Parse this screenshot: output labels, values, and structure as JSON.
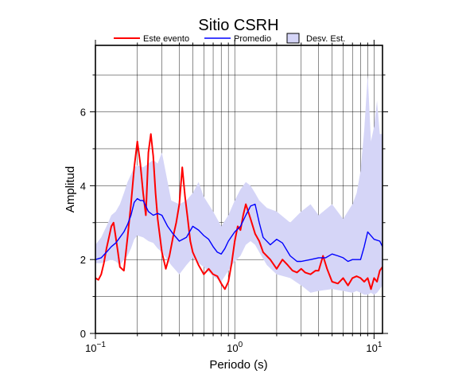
{
  "chart_data": {
    "type": "line",
    "title": "Sitio CSRH",
    "xlabel": "Periodo (s)",
    "ylabel": "Amplitud",
    "xscale": "log",
    "xlim": [
      0.1,
      11.5
    ],
    "ylim": [
      0,
      7.8
    ],
    "x_ticks": [
      {
        "value": 0.1,
        "base": "10",
        "exp": "−1"
      },
      {
        "value": 1,
        "base": "10",
        "exp": "0"
      },
      {
        "value": 10,
        "base": "10",
        "exp": "1"
      }
    ],
    "y_ticks": [
      {
        "value": 0,
        "label": "0"
      },
      {
        "value": 2,
        "label": "2"
      },
      {
        "value": 4,
        "label": "4"
      },
      {
        "value": 6,
        "label": "6"
      }
    ],
    "y_minor": [
      1,
      3,
      5,
      7
    ],
    "grid": true,
    "legend_position": "top",
    "colors": {
      "event": "#ff0000",
      "mean": "#0000ff",
      "band": "#d5d5f7",
      "band_edge": "#000000"
    },
    "legend": {
      "event": "Este evento",
      "mean": "Promedio",
      "band": "Desv. Est."
    },
    "series": [
      {
        "name": "Este evento",
        "color": "#ff0000",
        "x": [
          0.1,
          0.105,
          0.11,
          0.115,
          0.12,
          0.125,
          0.13,
          0.135,
          0.14,
          0.145,
          0.15,
          0.16,
          0.17,
          0.18,
          0.19,
          0.2,
          0.21,
          0.22,
          0.23,
          0.24,
          0.25,
          0.26,
          0.27,
          0.28,
          0.3,
          0.32,
          0.34,
          0.36,
          0.38,
          0.4,
          0.42,
          0.44,
          0.46,
          0.48,
          0.5,
          0.55,
          0.6,
          0.65,
          0.7,
          0.75,
          0.8,
          0.85,
          0.9,
          0.95,
          1.0,
          1.05,
          1.1,
          1.15,
          1.2,
          1.3,
          1.4,
          1.5,
          1.6,
          1.8,
          2.0,
          2.2,
          2.4,
          2.6,
          2.8,
          3.0,
          3.2,
          3.5,
          3.8,
          4.0,
          4.3,
          4.6,
          5.0,
          5.5,
          6.0,
          6.5,
          7.0,
          7.5,
          8.0,
          8.5,
          9.0,
          9.5,
          10.0,
          10.5,
          11.0,
          11.5
        ],
        "values": [
          1.5,
          1.45,
          1.6,
          1.9,
          2.3,
          2.6,
          2.9,
          3.0,
          2.6,
          2.2,
          1.8,
          1.7,
          2.6,
          3.5,
          4.5,
          5.2,
          4.6,
          3.8,
          3.2,
          4.9,
          5.4,
          4.8,
          3.8,
          3.1,
          2.2,
          1.75,
          2.1,
          2.6,
          3.0,
          3.5,
          4.5,
          3.7,
          3.1,
          2.5,
          2.2,
          1.85,
          1.6,
          1.75,
          1.6,
          1.55,
          1.35,
          1.2,
          1.4,
          1.9,
          2.5,
          2.9,
          2.8,
          3.2,
          3.5,
          3.1,
          2.7,
          2.5,
          2.2,
          2.0,
          1.75,
          2.0,
          1.85,
          1.7,
          1.65,
          1.75,
          1.65,
          1.6,
          1.7,
          1.7,
          2.1,
          1.75,
          1.4,
          1.35,
          1.5,
          1.3,
          1.5,
          1.55,
          1.5,
          1.4,
          1.5,
          1.2,
          1.5,
          1.4,
          1.7,
          1.8
        ]
      },
      {
        "name": "Promedio",
        "color": "#0000ff",
        "x": [
          0.1,
          0.11,
          0.12,
          0.13,
          0.14,
          0.15,
          0.16,
          0.17,
          0.18,
          0.19,
          0.2,
          0.21,
          0.22,
          0.24,
          0.26,
          0.28,
          0.3,
          0.33,
          0.36,
          0.4,
          0.45,
          0.5,
          0.55,
          0.6,
          0.65,
          0.7,
          0.75,
          0.8,
          0.85,
          0.9,
          1.0,
          1.1,
          1.2,
          1.3,
          1.4,
          1.5,
          1.6,
          1.8,
          2.0,
          2.2,
          2.5,
          2.8,
          3.0,
          3.5,
          4.0,
          4.5,
          5.0,
          5.5,
          6.0,
          6.5,
          7.0,
          8.0,
          8.5,
          9.0,
          10.0,
          11.0,
          11.5
        ],
        "values": [
          2.0,
          2.05,
          2.2,
          2.35,
          2.45,
          2.6,
          2.75,
          2.95,
          3.2,
          3.55,
          3.65,
          3.6,
          3.6,
          3.3,
          3.2,
          3.25,
          3.2,
          2.9,
          2.7,
          2.5,
          2.6,
          2.9,
          2.8,
          2.65,
          2.55,
          2.35,
          2.2,
          2.15,
          2.3,
          2.5,
          2.75,
          2.9,
          3.2,
          3.45,
          3.5,
          3.0,
          2.6,
          2.4,
          2.55,
          2.45,
          2.1,
          1.95,
          1.95,
          2.0,
          2.05,
          2.05,
          2.15,
          2.1,
          2.05,
          1.95,
          2.0,
          2.0,
          2.35,
          2.75,
          2.55,
          2.5,
          2.35
        ]
      },
      {
        "name": "Desv. Est.",
        "x": [
          0.1,
          0.11,
          0.12,
          0.13,
          0.14,
          0.15,
          0.16,
          0.17,
          0.18,
          0.19,
          0.2,
          0.22,
          0.24,
          0.26,
          0.28,
          0.3,
          0.35,
          0.4,
          0.45,
          0.5,
          0.55,
          0.6,
          0.7,
          0.8,
          0.9,
          1.0,
          1.1,
          1.2,
          1.3,
          1.4,
          1.5,
          1.7,
          2.0,
          2.5,
          3.0,
          3.5,
          4.0,
          5.0,
          6.0,
          7.0,
          7.5,
          8.0,
          8.5,
          9.0,
          9.5,
          10.0,
          10.5,
          11.0,
          11.5
        ],
        "upper": [
          2.4,
          2.6,
          2.9,
          3.2,
          3.3,
          3.5,
          3.8,
          4.1,
          4.3,
          4.5,
          4.55,
          4.5,
          4.6,
          4.7,
          4.6,
          4.9,
          3.6,
          3.5,
          3.6,
          3.8,
          4.1,
          3.7,
          3.3,
          2.9,
          3.2,
          3.6,
          3.9,
          4.1,
          4.0,
          3.8,
          3.6,
          3.4,
          3.3,
          3.0,
          3.3,
          3.5,
          3.2,
          3.5,
          3.1,
          3.5,
          3.8,
          4.4,
          5.5,
          7.0,
          5.2,
          5.6,
          6.3,
          5.4,
          5.4
        ],
        "lower": [
          1.9,
          1.9,
          1.95,
          2.0,
          1.95,
          1.85,
          2.0,
          2.1,
          2.3,
          2.55,
          2.65,
          2.6,
          2.5,
          2.45,
          2.3,
          2.2,
          1.85,
          1.6,
          1.85,
          2.05,
          1.9,
          1.8,
          1.55,
          1.4,
          1.7,
          1.95,
          2.1,
          2.4,
          2.5,
          2.4,
          2.2,
          1.85,
          1.6,
          1.5,
          1.3,
          1.1,
          1.15,
          1.2,
          1.15,
          1.1,
          1.15,
          1.1,
          1.05,
          1.05,
          1.1,
          1.05,
          1.1,
          1.2,
          1.3
        ]
      }
    ]
  }
}
